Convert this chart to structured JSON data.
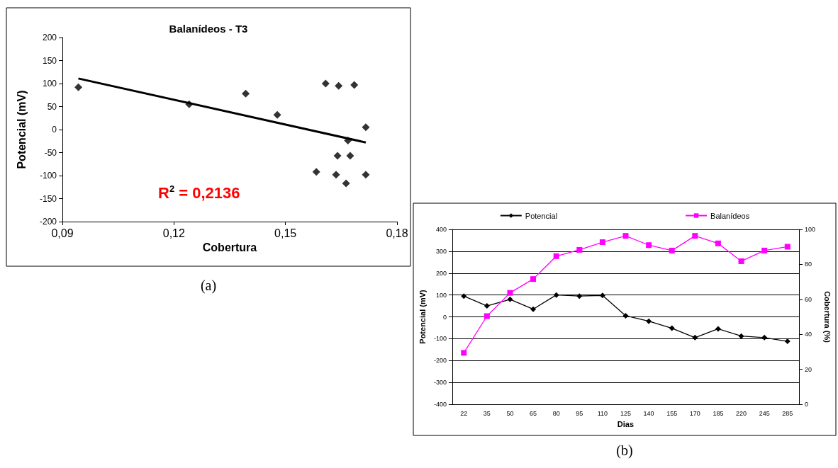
{
  "chart_data": [
    {
      "type": "scatter",
      "title": "Balanídeos - T3",
      "xlabel": "Cobertura",
      "ylabel": "Potencial (mV)",
      "annotations": [
        "R$^{2}$ = 0,2136",
        "(a)"
      ],
      "marker": "diamond",
      "grid": false,
      "legend": false,
      "xlim": [
        0.09,
        0.18
      ],
      "xticks": [
        {
          "value": 0.09,
          "label": "0,09"
        },
        {
          "value": 0.12,
          "label": "0,12"
        },
        {
          "value": 0.15,
          "label": "0,15"
        },
        {
          "value": 0.18,
          "label": "0,18"
        }
      ],
      "ylim": [
        -200,
        200
      ],
      "yticks": [
        -200,
        -150,
        -100,
        -50,
        0,
        50,
        100,
        150,
        200
      ],
      "series": [
        {
          "color": "#000000",
          "x": [
            0.0943,
            0.1241,
            0.1393,
            0.1478,
            0.1608,
            0.1643,
            0.1685,
            0.1716,
            0.1668,
            0.164,
            0.1674,
            0.1583,
            0.1636,
            0.1716,
            0.1663
          ],
          "values": [
            92,
            55,
            78,
            32,
            100,
            95,
            97,
            5,
            -24,
            -57,
            -57,
            -92,
            -98,
            -98,
            -117
          ]
        },
        {
          "type": "line",
          "color": "#000000",
          "marker": "none",
          "x": [
            0.0943,
            0.1716
          ],
          "values": [
            111,
            -28
          ]
        }
      ]
    },
    {
      "type": "line",
      "xlabel": "Dias",
      "ylabel": "Potencial (mV)",
      "y2label": "Cobertura (%)",
      "annotations": [
        "(b)"
      ],
      "grid": "y",
      "legend": "top",
      "line_style": "solid",
      "categories": [
        "22",
        "35",
        "50",
        "65",
        "80",
        "95",
        "110",
        "125",
        "140",
        "155",
        "170",
        "185",
        "220",
        "245",
        "285"
      ],
      "ylim": [
        -400,
        400
      ],
      "yticks": [
        -400,
        -300,
        -200,
        -100,
        0,
        100,
        200,
        300,
        400
      ],
      "y2lim": [
        0,
        100
      ],
      "y2ticks": [
        0,
        20,
        40,
        60,
        80,
        100
      ],
      "series": [
        {
          "name": "Potencial",
          "color": "#000000",
          "marker": "diamond",
          "values": [
            95,
            50,
            80,
            35,
            100,
            95,
            98,
            5,
            -20,
            -52,
            -95,
            -55,
            -88,
            -95,
            -112
          ]
        },
        {
          "name": "Balanídeos",
          "color": "#ff00ff",
          "marker": "square",
          "axis": "y2",
          "values": [
            29.4,
            50.4,
            63.7,
            71.6,
            84.7,
            88.3,
            92.7,
            96.3,
            91.0,
            87.9,
            96.3,
            92.0,
            81.8,
            87.9,
            90.1
          ]
        }
      ]
    }
  ]
}
